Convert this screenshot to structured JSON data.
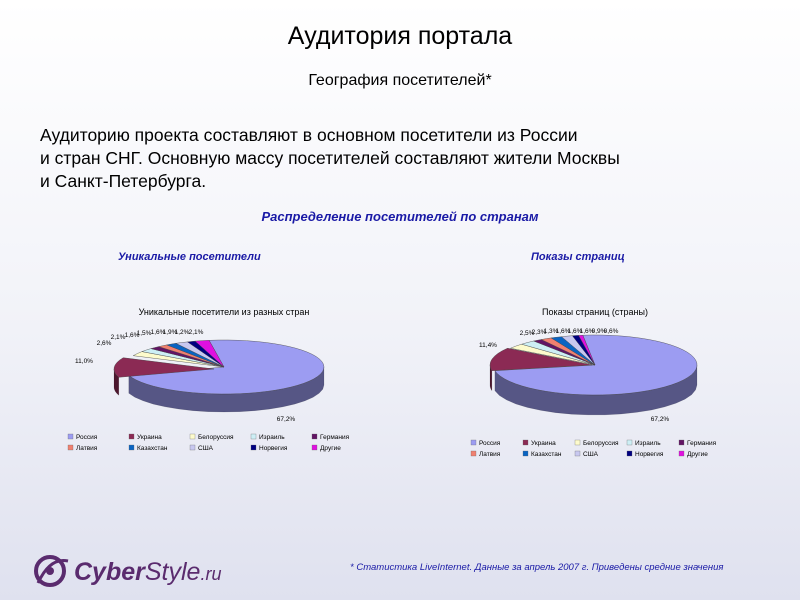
{
  "title": "Аудитория портала",
  "subtitle": "География посетителей*",
  "intro_lines": [
    "Аудиторию проекта составляют в основном посетители из России",
    "и стран СНГ. Основную массу посетителей составляют жители Москвы",
    "и Санкт-Петербурга."
  ],
  "distribution_title": "Распределение посетителей по странам",
  "footnote": "* Статистика LiveInternet. Данные за апрель 2007 г. Приведены средние значения",
  "logo": {
    "text": "CyberStyle.ru",
    "part1": "Cyber",
    "part2": "Style",
    "part3": ".ru",
    "color": "#5a2b6e"
  },
  "chart_data": [
    {
      "type": "pie",
      "heading": "Уникальные посетители",
      "title": "Уникальные посетители из разных стран",
      "categories": [
        "Россия",
        "Украина",
        "Белоруссия",
        "Израиль",
        "Германия",
        "Латвия",
        "Казахстан",
        "США",
        "Норвегия",
        "Другие"
      ],
      "values": [
        67.2,
        11.0,
        2.6,
        2.1,
        1.6,
        1.5,
        1.6,
        1.9,
        1.2,
        2.1
      ],
      "value_labels": [
        "67,2%",
        "11,0%",
        "2,6%",
        "2,1%",
        "1,6%",
        "1,5%",
        "1,6%",
        "1,9%",
        "1,2%",
        "2,1%"
      ],
      "legend_position": "bottom"
    },
    {
      "type": "pie",
      "heading": "Показы страниц",
      "title": "Показы страниц (страны)",
      "categories": [
        "Россия",
        "Украина",
        "Белоруссия",
        "Израиль",
        "Германия",
        "Латвия",
        "Казахстан",
        "США",
        "Норвегия",
        "Другие"
      ],
      "values": [
        67.2,
        11.4,
        2.5,
        2.3,
        1.3,
        1.6,
        1.6,
        1.6,
        0.9,
        0.6
      ],
      "value_labels": [
        "67,2%",
        "11,4%",
        "2,5%",
        "2,3%",
        "1,3%",
        "1,6%",
        "1,6%",
        "1,6%",
        "0,9%",
        "0,6%"
      ],
      "legend_position": "bottom"
    }
  ],
  "colors": [
    "#9c9cf2",
    "#8b2a54",
    "#fdfbcc",
    "#cdeff5",
    "#621464",
    "#f08070",
    "#0a64c2",
    "#c8c8f0",
    "#000080",
    "#e010e0"
  ]
}
